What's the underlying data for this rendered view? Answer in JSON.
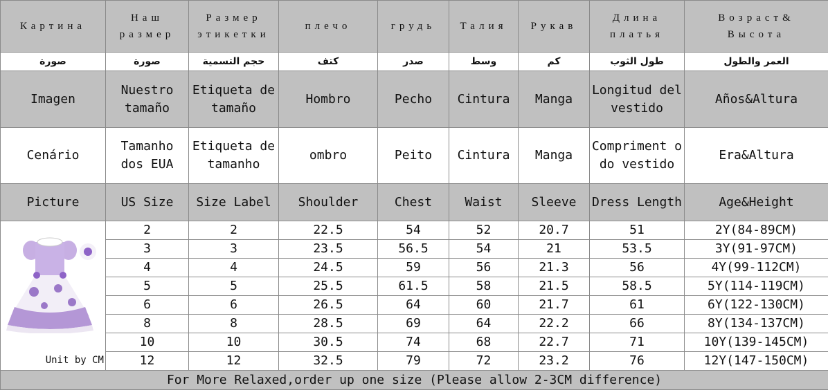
{
  "columns_ru": [
    "Картина",
    "Наш размер",
    "Размер этикетки",
    "плечо",
    "грудь",
    "Талия",
    "Рукав",
    "Длина платья",
    "Возраст& Высота"
  ],
  "columns_ar": [
    "صورة",
    "صورة",
    "حجم التسمية",
    "كتف",
    "صدر",
    "وسط",
    "كم",
    "طول الثوب",
    "العمر والطول"
  ],
  "columns_es": [
    "Imagen",
    "Nuestro tamaño",
    "Etiqueta de tamaño",
    "Hombro",
    "Pecho",
    "Cintura",
    "Manga",
    "Longitud del vestido",
    "Años&Altura"
  ],
  "columns_pt": [
    "Cenário",
    "Tamanho dos EUA",
    "Etiqueta de tamanho",
    "ombro",
    "Peito",
    "Cintura",
    "Manga",
    "Compriment o do vestido",
    "Era&Altura"
  ],
  "columns_en": [
    "Picture",
    "US Size",
    "Size Label",
    "Shoulder",
    "Chest",
    "Waist",
    "Sleeve",
    "Dress Length",
    "Age&Height"
  ],
  "rows": [
    [
      "2",
      "2",
      "22.5",
      "54",
      "52",
      "20.7",
      "51",
      "2Y(84-89CM)"
    ],
    [
      "3",
      "3",
      "23.5",
      "56.5",
      "54",
      "21",
      "53.5",
      "3Y(91-97CM)"
    ],
    [
      "4",
      "4",
      "24.5",
      "59",
      "56",
      "21.3",
      "56",
      "4Y(99-112CM)"
    ],
    [
      "5",
      "5",
      "25.5",
      "61.5",
      "58",
      "21.5",
      "58.5",
      "5Y(114-119CM)"
    ],
    [
      "6",
      "6",
      "26.5",
      "64",
      "60",
      "21.7",
      "61",
      "6Y(122-130CM)"
    ],
    [
      "8",
      "8",
      "28.5",
      "69",
      "64",
      "22.2",
      "66",
      "8Y(134-137CM)"
    ],
    [
      "10",
      "10",
      "30.5",
      "74",
      "68",
      "22.7",
      "71",
      "10Y(139-145CM)"
    ],
    [
      "12",
      "12",
      "32.5",
      "79",
      "72",
      "23.2",
      "76",
      "12Y(147-150CM)"
    ]
  ],
  "unit_note": "Unit by CM",
  "footer": "For More Relaxed,order up one size (Please allow 2-3CM difference)",
  "colors": {
    "header_bg": "#c0c0c0",
    "dress": "#b497d6"
  }
}
